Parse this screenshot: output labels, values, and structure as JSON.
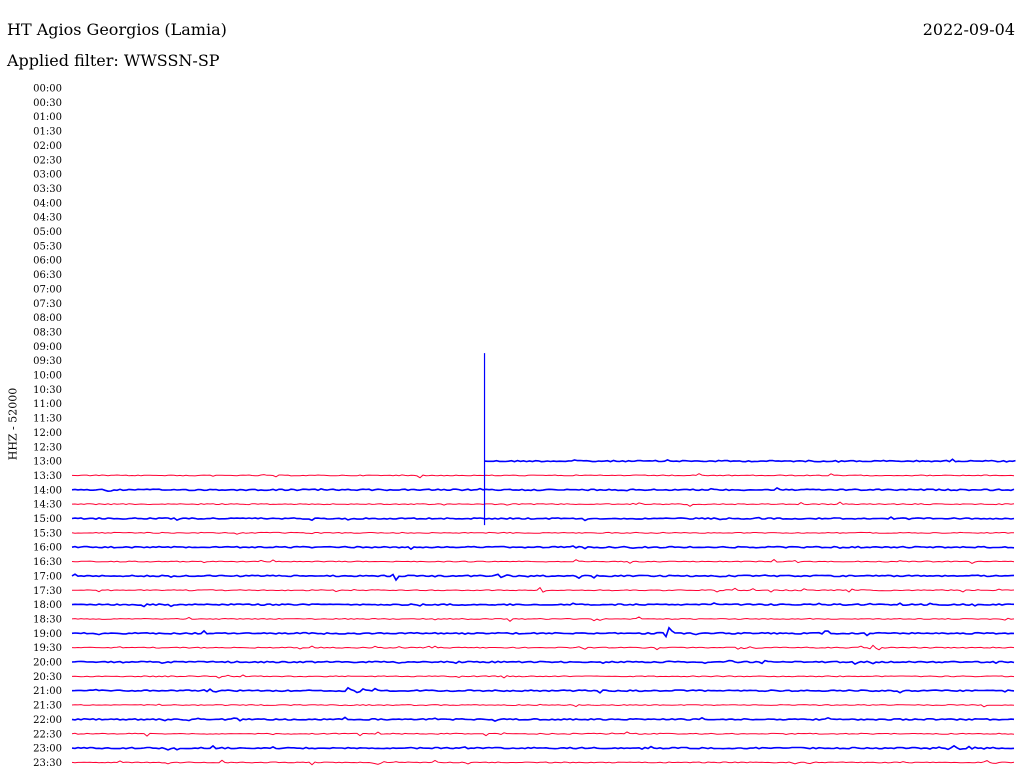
{
  "header": {
    "station": "HT Agios Georgios (Lamia)",
    "filter": "Applied filter: WWSSN-SP",
    "date": "2022-09-04"
  },
  "chart_data": {
    "type": "line",
    "title": "HT Agios Georgios (Lamia)",
    "subtitle": "Applied filter: WWSSN-SP",
    "ylabel": "HHZ - 52000",
    "xlabel": "",
    "row_labels": [
      "00:00",
      "00:30",
      "01:00",
      "01:30",
      "02:00",
      "02:30",
      "03:00",
      "03:30",
      "04:00",
      "04:30",
      "05:00",
      "05:30",
      "06:00",
      "06:30",
      "07:00",
      "07:30",
      "08:00",
      "08:30",
      "09:00",
      "09:30",
      "10:00",
      "10:30",
      "11:00",
      "11:30",
      "12:00",
      "12:30",
      "13:00",
      "13:30",
      "14:00",
      "14:30",
      "15:00",
      "15:30",
      "16:00",
      "16:30",
      "17:00",
      "17:30",
      "18:00",
      "18:30",
      "19:00",
      "19:30",
      "20:00",
      "20:30",
      "21:00",
      "21:30",
      "22:00",
      "22:30",
      "23:00",
      "23:30"
    ],
    "trace_start_label": "13:00",
    "trace_start_fraction": 0.437,
    "colors": {
      "odd": "#0000ff",
      "even": "#ff0033"
    },
    "grid": false,
    "legend": "none"
  }
}
